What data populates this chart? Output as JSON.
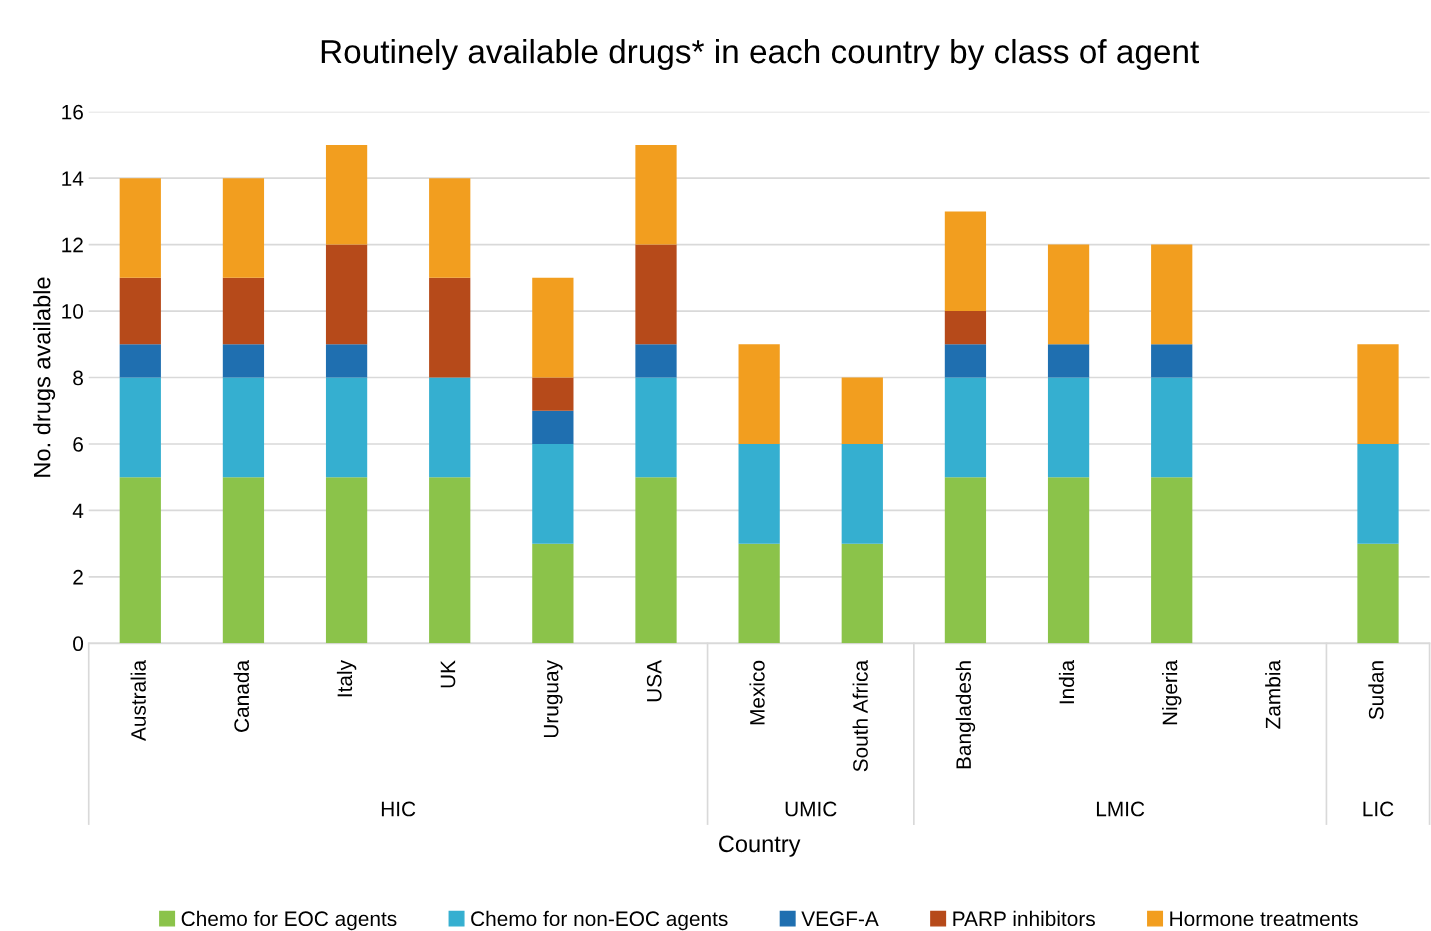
{
  "chart_data": {
    "type": "bar",
    "title": "Routinely available drugs* in each country by class of agent",
    "xlabel": "Country",
    "ylabel": "No. drugs available",
    "stacked": true,
    "categories": [
      "Australia",
      "Canada",
      "Italy",
      "UK",
      "Uruguay",
      "USA",
      "Mexico",
      "South Africa",
      "Bangladesh",
      "India",
      "Nigeria",
      "Zambia",
      "Sudan"
    ],
    "series": [
      {
        "name": "Chemo for EOC agents",
        "color": "#8bc34a",
        "values": [
          5,
          5,
          5,
          5,
          3,
          5,
          3,
          3,
          5,
          5,
          5,
          0,
          3
        ]
      },
      {
        "name": "Chemo for non-EOC agents",
        "color": "#35afd0",
        "values": [
          3,
          3,
          3,
          3,
          3,
          3,
          3,
          3,
          3,
          3,
          3,
          0,
          3
        ]
      },
      {
        "name": "VEGF-A",
        "color": "#1f6fb0",
        "values": [
          1,
          1,
          1,
          0,
          1,
          1,
          0,
          0,
          1,
          1,
          1,
          0,
          0
        ]
      },
      {
        "name": "PARP inhibitors",
        "color": "#b64a1a",
        "values": [
          2,
          2,
          3,
          3,
          1,
          3,
          0,
          0,
          1,
          0,
          0,
          0,
          0
        ]
      },
      {
        "name": "Hormone treatments",
        "color": "#f29e1f",
        "values": [
          3,
          3,
          3,
          3,
          3,
          3,
          3,
          2,
          3,
          3,
          3,
          0,
          3
        ]
      }
    ],
    "annotations": [
      "HIC",
      "UMIC",
      "LMIC",
      "LIC"
    ],
    "ylim": [
      0,
      16
    ],
    "yticks": [
      0,
      2,
      4,
      6,
      8,
      10,
      12,
      14,
      16
    ],
    "grid": "y",
    "legend": "bottom"
  }
}
